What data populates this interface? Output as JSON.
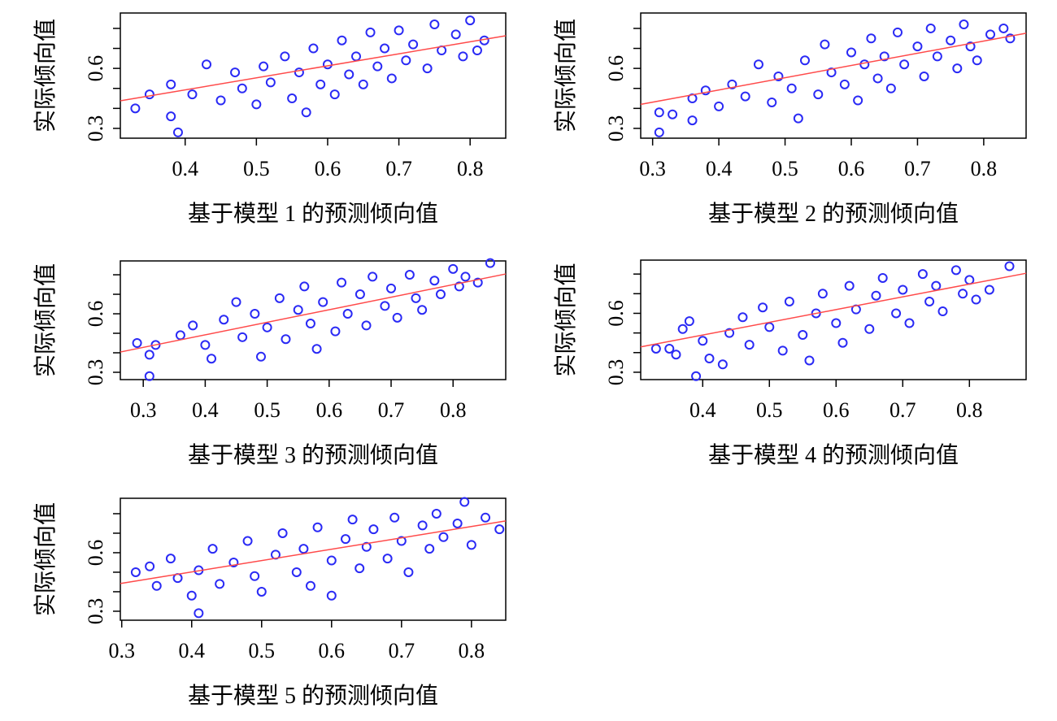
{
  "chart_data": [
    {
      "type": "scatter",
      "xlabel": "基于模型 1 的预测倾向值",
      "ylabel": "实际倾向值",
      "color": "#2a2af5",
      "fit_color": "#ff4a4a",
      "xlim": [
        0.309,
        0.85
      ],
      "ylim": [
        0.251,
        0.877
      ],
      "xticks": [
        0.4,
        0.5,
        0.6,
        0.7,
        0.8
      ],
      "yticks": [
        0.3,
        0.6
      ],
      "yticks_minor": [
        0.4,
        0.5,
        0.7,
        0.8
      ],
      "points": {
        "x": [
          0.33,
          0.35,
          0.38,
          0.38,
          0.39,
          0.41,
          0.43,
          0.45,
          0.47,
          0.48,
          0.5,
          0.51,
          0.52,
          0.54,
          0.55,
          0.56,
          0.57,
          0.58,
          0.59,
          0.6,
          0.61,
          0.62,
          0.63,
          0.64,
          0.65,
          0.66,
          0.67,
          0.68,
          0.69,
          0.7,
          0.71,
          0.72,
          0.74,
          0.75,
          0.76,
          0.78,
          0.79,
          0.8,
          0.82,
          0.81
        ],
        "y": [
          0.4,
          0.47,
          0.36,
          0.52,
          0.28,
          0.47,
          0.62,
          0.44,
          0.58,
          0.5,
          0.42,
          0.61,
          0.53,
          0.66,
          0.45,
          0.58,
          0.38,
          0.7,
          0.52,
          0.62,
          0.47,
          0.74,
          0.57,
          0.66,
          0.52,
          0.78,
          0.61,
          0.7,
          0.55,
          0.79,
          0.64,
          0.72,
          0.6,
          0.82,
          0.69,
          0.77,
          0.66,
          0.84,
          0.74,
          0.69
        ]
      },
      "fit": {
        "x": [
          0.309,
          0.85
        ],
        "y": [
          0.438,
          0.763
        ]
      }
    },
    {
      "type": "scatter",
      "xlabel": "基于模型 2 的预测倾向值",
      "ylabel": "实际倾向值",
      "color": "#2a2af5",
      "fit_color": "#ff4a4a",
      "xlim": [
        0.282,
        0.864
      ],
      "ylim": [
        0.251,
        0.877
      ],
      "xticks": [
        0.3,
        0.4,
        0.5,
        0.6,
        0.7,
        0.8
      ],
      "yticks": [
        0.3,
        0.6
      ],
      "yticks_minor": [
        0.4,
        0.5,
        0.7,
        0.8
      ],
      "points": {
        "x": [
          0.31,
          0.31,
          0.33,
          0.36,
          0.36,
          0.38,
          0.4,
          0.42,
          0.44,
          0.46,
          0.48,
          0.49,
          0.51,
          0.52,
          0.53,
          0.55,
          0.56,
          0.57,
          0.59,
          0.6,
          0.61,
          0.62,
          0.63,
          0.64,
          0.65,
          0.66,
          0.67,
          0.68,
          0.7,
          0.71,
          0.72,
          0.73,
          0.75,
          0.76,
          0.77,
          0.78,
          0.79,
          0.81,
          0.83,
          0.84
        ],
        "y": [
          0.38,
          0.28,
          0.37,
          0.34,
          0.45,
          0.49,
          0.41,
          0.52,
          0.46,
          0.62,
          0.43,
          0.56,
          0.5,
          0.35,
          0.64,
          0.47,
          0.72,
          0.58,
          0.52,
          0.68,
          0.44,
          0.62,
          0.75,
          0.55,
          0.66,
          0.5,
          0.78,
          0.62,
          0.71,
          0.56,
          0.8,
          0.66,
          0.74,
          0.6,
          0.82,
          0.71,
          0.64,
          0.77,
          0.8,
          0.75
        ]
      },
      "fit": {
        "x": [
          0.282,
          0.864
        ],
        "y": [
          0.42,
          0.776
        ]
      }
    },
    {
      "type": "scatter",
      "xlabel": "基于模型 3 的预测倾向值",
      "ylabel": "实际倾向值",
      "color": "#2a2af5",
      "fit_color": "#ff4a4a",
      "xlim": [
        0.263,
        0.885
      ],
      "ylim": [
        0.2625,
        0.871
      ],
      "xticks": [
        0.3,
        0.4,
        0.5,
        0.6,
        0.7,
        0.8
      ],
      "yticks": [
        0.3,
        0.6
      ],
      "yticks_minor": [
        0.4,
        0.5,
        0.7,
        0.8
      ],
      "points": {
        "x": [
          0.29,
          0.31,
          0.31,
          0.32,
          0.36,
          0.38,
          0.4,
          0.41,
          0.43,
          0.45,
          0.46,
          0.48,
          0.49,
          0.5,
          0.52,
          0.53,
          0.55,
          0.56,
          0.57,
          0.58,
          0.59,
          0.61,
          0.62,
          0.63,
          0.65,
          0.66,
          0.67,
          0.69,
          0.7,
          0.71,
          0.73,
          0.74,
          0.75,
          0.77,
          0.78,
          0.8,
          0.81,
          0.82,
          0.84,
          0.86
        ],
        "y": [
          0.45,
          0.39,
          0.28,
          0.44,
          0.49,
          0.54,
          0.44,
          0.37,
          0.57,
          0.66,
          0.48,
          0.6,
          0.38,
          0.53,
          0.68,
          0.47,
          0.62,
          0.74,
          0.55,
          0.42,
          0.66,
          0.51,
          0.76,
          0.6,
          0.7,
          0.54,
          0.79,
          0.64,
          0.73,
          0.58,
          0.8,
          0.68,
          0.62,
          0.77,
          0.7,
          0.83,
          0.74,
          0.79,
          0.76,
          0.86
        ]
      },
      "fit": {
        "x": [
          0.263,
          0.885
        ],
        "y": [
          0.404,
          0.804
        ]
      }
    },
    {
      "type": "scatter",
      "xlabel": "基于模型 4 的预测倾向值",
      "ylabel": "实际倾向值",
      "color": "#2a2af5",
      "fit_color": "#ff4a4a",
      "xlim": [
        0.307,
        0.885
      ],
      "ylim": [
        0.2625,
        0.871
      ],
      "xticks": [
        0.4,
        0.5,
        0.6,
        0.7,
        0.8
      ],
      "yticks": [
        0.3,
        0.6
      ],
      "yticks_minor": [
        0.4,
        0.5,
        0.7,
        0.8
      ],
      "points": {
        "x": [
          0.33,
          0.35,
          0.36,
          0.37,
          0.38,
          0.39,
          0.4,
          0.41,
          0.43,
          0.44,
          0.46,
          0.47,
          0.49,
          0.5,
          0.52,
          0.53,
          0.55,
          0.56,
          0.57,
          0.58,
          0.6,
          0.61,
          0.62,
          0.63,
          0.65,
          0.66,
          0.67,
          0.69,
          0.7,
          0.71,
          0.73,
          0.74,
          0.75,
          0.76,
          0.78,
          0.79,
          0.8,
          0.81,
          0.83,
          0.86
        ],
        "y": [
          0.42,
          0.42,
          0.39,
          0.52,
          0.56,
          0.28,
          0.46,
          0.37,
          0.34,
          0.5,
          0.58,
          0.44,
          0.63,
          0.53,
          0.41,
          0.66,
          0.49,
          0.36,
          0.6,
          0.7,
          0.55,
          0.45,
          0.74,
          0.62,
          0.52,
          0.69,
          0.78,
          0.6,
          0.72,
          0.55,
          0.8,
          0.66,
          0.74,
          0.61,
          0.82,
          0.7,
          0.77,
          0.67,
          0.72,
          0.84
        ]
      },
      "fit": {
        "x": [
          0.307,
          0.885
        ],
        "y": [
          0.429,
          0.804
        ]
      }
    },
    {
      "type": "scatter",
      "xlabel": "基于模型 5 的预测倾向值",
      "ylabel": "实际倾向值",
      "color": "#2a2af5",
      "fit_color": "#ff4a4a",
      "xlim": [
        0.298,
        0.849
      ],
      "ylim": [
        0.254,
        0.879
      ],
      "xticks": [
        0.3,
        0.4,
        0.5,
        0.6,
        0.7,
        0.8
      ],
      "yticks": [
        0.3,
        0.6
      ],
      "yticks_minor": [
        0.4,
        0.5,
        0.7,
        0.8
      ],
      "points": {
        "x": [
          0.32,
          0.34,
          0.35,
          0.37,
          0.38,
          0.4,
          0.41,
          0.41,
          0.43,
          0.44,
          0.46,
          0.48,
          0.49,
          0.5,
          0.52,
          0.53,
          0.55,
          0.56,
          0.57,
          0.58,
          0.6,
          0.6,
          0.62,
          0.63,
          0.64,
          0.65,
          0.66,
          0.68,
          0.69,
          0.7,
          0.71,
          0.73,
          0.74,
          0.75,
          0.76,
          0.78,
          0.79,
          0.8,
          0.82,
          0.84
        ],
        "y": [
          0.5,
          0.53,
          0.43,
          0.57,
          0.47,
          0.38,
          0.51,
          0.29,
          0.62,
          0.44,
          0.55,
          0.66,
          0.48,
          0.4,
          0.59,
          0.7,
          0.5,
          0.62,
          0.43,
          0.73,
          0.56,
          0.38,
          0.67,
          0.77,
          0.52,
          0.63,
          0.72,
          0.57,
          0.78,
          0.66,
          0.5,
          0.74,
          0.62,
          0.8,
          0.68,
          0.75,
          0.86,
          0.64,
          0.78,
          0.72
        ]
      },
      "fit": {
        "x": [
          0.298,
          0.849
        ],
        "y": [
          0.442,
          0.763
        ]
      }
    }
  ]
}
